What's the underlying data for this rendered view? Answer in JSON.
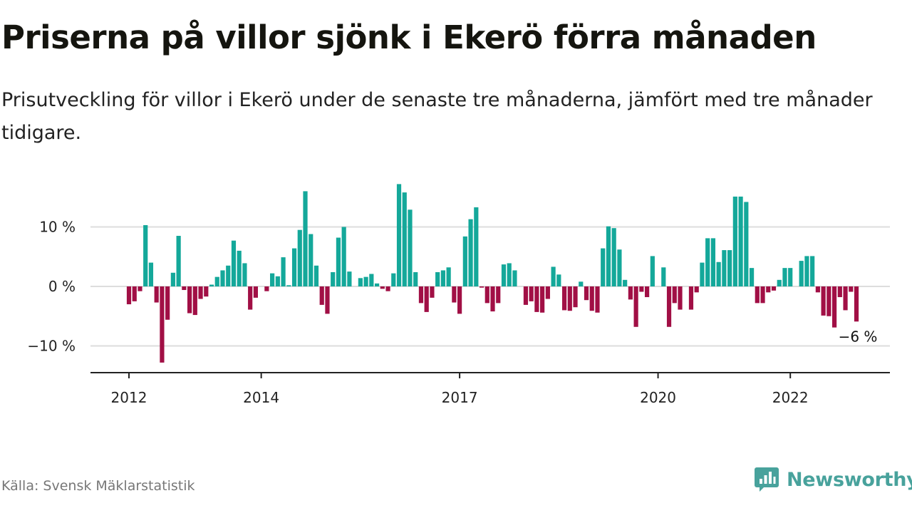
{
  "header": {
    "title": "Priserna på villor sjönk i Ekerö förra månaden",
    "subtitle": "Prisutveckling för villor i Ekerö under de senaste tre månaderna, jämfört med tre månader tidigare."
  },
  "footer": {
    "source": "Källa: Svensk Mäklarstatistik",
    "brand": "Newsworthy",
    "brand_icon": "newsworthy-logo-icon"
  },
  "colors": {
    "positive": "#14a89a",
    "negative": "#a10f45",
    "grid": "#dddddd",
    "axis": "#222222",
    "brand": "#48a29c"
  },
  "chart_data": {
    "type": "bar",
    "x_start": "2012-01",
    "frequency": "monthly",
    "ylim": [
      -14,
      20
    ],
    "yticks": [
      {
        "value": -10,
        "label": "−10 %"
      },
      {
        "value": 0,
        "label": "0 %"
      },
      {
        "value": 10,
        "label": "10 %"
      }
    ],
    "xticks": [
      {
        "date": "2012-01",
        "label": "2012"
      },
      {
        "date": "2014-01",
        "label": "2014"
      },
      {
        "date": "2017-01",
        "label": "2017"
      },
      {
        "date": "2020-01",
        "label": "2020"
      },
      {
        "date": "2022-01",
        "label": "2022"
      }
    ],
    "values": [
      -3.0,
      -2.5,
      -0.8,
      10.3,
      4.0,
      -2.7,
      -12.8,
      -5.6,
      2.3,
      8.5,
      -0.6,
      -4.5,
      -4.8,
      -2.1,
      -1.7,
      0.3,
      1.6,
      2.7,
      3.5,
      7.7,
      6.0,
      3.9,
      -3.9,
      -1.9,
      0.0,
      -0.8,
      2.2,
      1.7,
      4.9,
      0.2,
      6.4,
      9.5,
      16.0,
      8.8,
      3.5,
      -3.1,
      -4.6,
      2.4,
      8.2,
      10.0,
      2.5,
      0.0,
      1.4,
      1.6,
      2.1,
      0.5,
      -0.4,
      -0.8,
      2.2,
      17.2,
      15.8,
      12.9,
      2.4,
      -2.8,
      -4.3,
      -1.9,
      2.4,
      2.7,
      3.2,
      -2.7,
      -4.6,
      8.4,
      11.3,
      13.3,
      -0.2,
      -2.8,
      -4.2,
      -2.8,
      3.7,
      3.9,
      2.7,
      0.0,
      -3.1,
      -2.5,
      -4.3,
      -4.4,
      -2.1,
      3.3,
      2.0,
      -4.0,
      -4.1,
      -3.5,
      0.8,
      -2.3,
      -4.1,
      -4.4,
      6.4,
      10.1,
      9.8,
      6.2,
      1.1,
      -2.2,
      -6.8,
      -0.9,
      -1.8,
      5.1,
      0.0,
      3.2,
      -6.8,
      -2.8,
      -3.9,
      0.0,
      -3.9,
      -1.0,
      4.0,
      8.1,
      8.1,
      4.1,
      6.1,
      6.1,
      15.1,
      15.1,
      14.2,
      3.1,
      -2.8,
      -2.8,
      -1.0,
      -0.7,
      1.1,
      3.1,
      3.1,
      0.0,
      4.3,
      5.1,
      5.1,
      -1.0,
      -4.9,
      -5.0,
      -6.9,
      -1.8,
      -4.0,
      -0.9,
      -5.9
    ],
    "last_value_label": "−6 %"
  }
}
